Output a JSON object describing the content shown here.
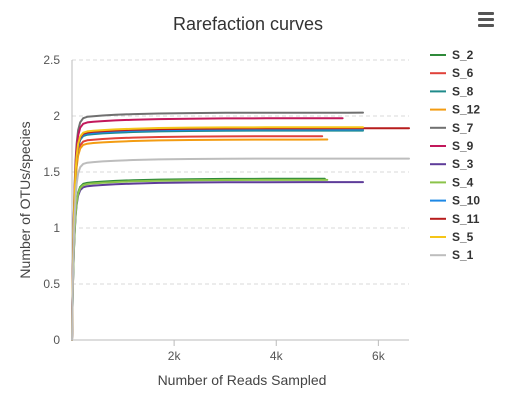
{
  "menu": {
    "icon": "hamburger-menu-icon"
  },
  "chart_data": {
    "type": "line",
    "title": "Rarefaction curves",
    "xlabel": "Number of Reads Sampled",
    "ylabel": "Number of OTUs/species",
    "xlim": [
      0,
      6600
    ],
    "ylim": [
      0,
      2.5
    ],
    "xticks": [
      2000,
      4000,
      6000
    ],
    "xtick_labels": [
      "2k",
      "4k",
      "6k"
    ],
    "yticks": [
      0,
      0.5,
      1,
      1.5,
      2,
      2.5
    ],
    "ytick_labels": [
      "0",
      "0.5",
      "1",
      "1.5",
      "2",
      "2.5"
    ],
    "grid": "horizontal dashed",
    "legend_position": "right",
    "series": [
      {
        "name": "S_2",
        "color": "#2f8a3a",
        "plateau": 1.44,
        "max_x": 4950
      },
      {
        "name": "S_6",
        "color": "#e0413a",
        "plateau": 1.82,
        "max_x": 4900
      },
      {
        "name": "S_8",
        "color": "#1f8a8a",
        "plateau": 1.87,
        "max_x": 5700
      },
      {
        "name": "S_12",
        "color": "#f39c12",
        "plateau": 1.79,
        "max_x": 5000
      },
      {
        "name": "S_7",
        "color": "#707070",
        "plateau": 2.03,
        "max_x": 5700
      },
      {
        "name": "S_9",
        "color": "#c2185b",
        "plateau": 1.98,
        "max_x": 5300
      },
      {
        "name": "S_3",
        "color": "#5e3c99",
        "plateau": 1.41,
        "max_x": 5700
      },
      {
        "name": "S_4",
        "color": "#8bc34a",
        "plateau": 1.43,
        "max_x": 5000
      },
      {
        "name": "S_10",
        "color": "#1e88e5",
        "plateau": 1.88,
        "max_x": 5700
      },
      {
        "name": "S_11",
        "color": "#b71c1c",
        "plateau": 1.89,
        "max_x": 6600
      },
      {
        "name": "S_5",
        "color": "#f5c518",
        "plateau": 1.9,
        "max_x": 5700
      },
      {
        "name": "S_1",
        "color": "#bdbdbd",
        "plateau": 1.62,
        "max_x": 6600
      }
    ]
  }
}
